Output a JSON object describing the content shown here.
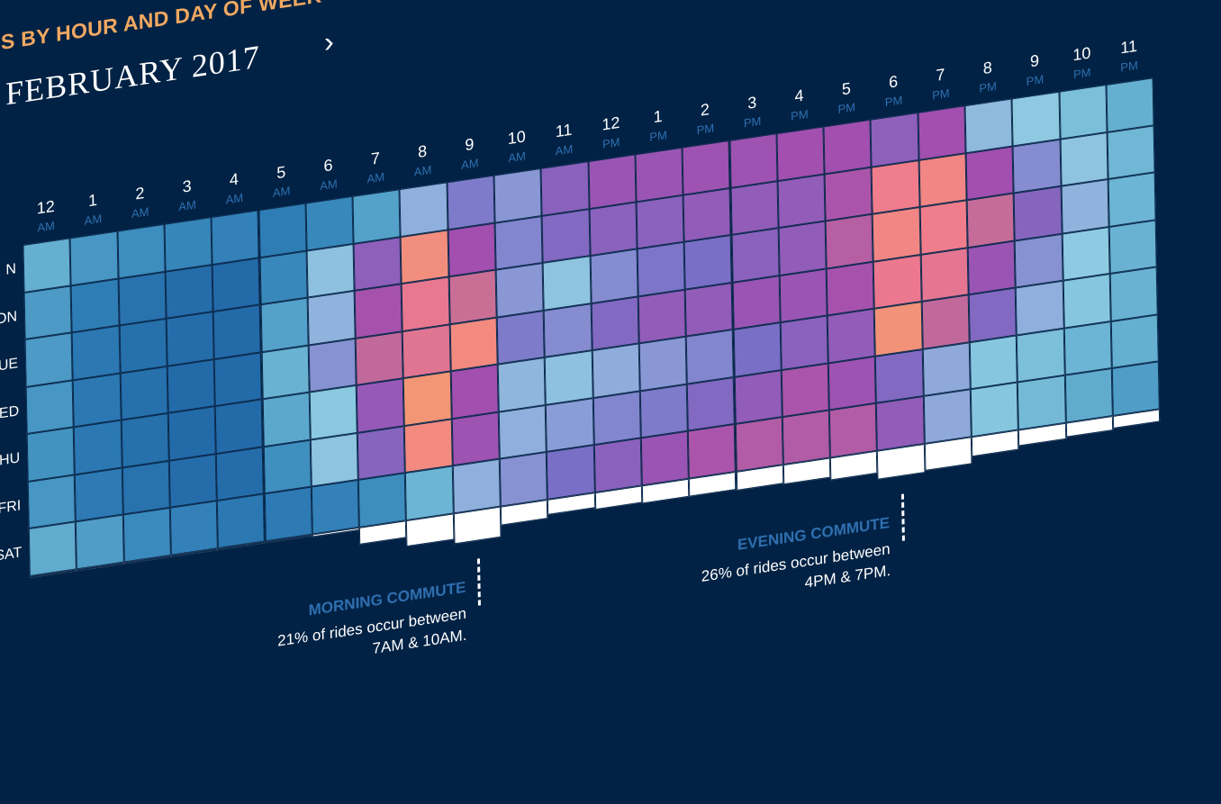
{
  "heading": "S BY HOUR AND DAY OF WEEK",
  "month_label": "FEBRUARY 2017",
  "next_icon": "chevron-right-icon",
  "chart_data": {
    "type": "heatmap",
    "rows": [
      "N",
      "ON",
      "UE",
      "WED",
      "THU",
      "FRI",
      "SAT"
    ],
    "hour_numbers": [
      "12",
      "1",
      "2",
      "3",
      "4",
      "5",
      "6",
      "7",
      "8",
      "9",
      "10",
      "11",
      "12",
      "1",
      "2",
      "3",
      "4",
      "5",
      "6",
      "7",
      "8",
      "9",
      "10",
      "11"
    ],
    "hour_periods": [
      "AM",
      "AM",
      "AM",
      "AM",
      "AM",
      "AM",
      "AM",
      "AM",
      "AM",
      "AM",
      "AM",
      "AM",
      "PM",
      "PM",
      "PM",
      "PM",
      "PM",
      "PM",
      "PM",
      "PM",
      "PM",
      "PM",
      "PM",
      "PM"
    ],
    "color_scale": [
      "#1b5c9c",
      "#2b78b3",
      "#3f8fbf",
      "#69b2d2",
      "#8ecbe2",
      "#8fa9da",
      "#7a6fc6",
      "#a24fb0",
      "#c96f96",
      "#f0798f",
      "#f4a36a"
    ],
    "values": [
      [
        0.29,
        0.22,
        0.19,
        0.16,
        0.14,
        0.12,
        0.17,
        0.25,
        0.48,
        0.58,
        0.53,
        0.64,
        0.68,
        0.68,
        0.69,
        0.69,
        0.7,
        0.7,
        0.65,
        0.7,
        0.45,
        0.41,
        0.35,
        0.29
      ],
      [
        0.23,
        0.12,
        0.08,
        0.06,
        0.05,
        0.17,
        0.43,
        0.65,
        0.95,
        0.7,
        0.56,
        0.62,
        0.64,
        0.64,
        0.66,
        0.66,
        0.66,
        0.72,
        0.91,
        0.93,
        0.7,
        0.55,
        0.42,
        0.32
      ],
      [
        0.23,
        0.1,
        0.07,
        0.06,
        0.05,
        0.25,
        0.47,
        0.71,
        0.88,
        0.8,
        0.53,
        0.42,
        0.55,
        0.59,
        0.6,
        0.64,
        0.66,
        0.75,
        0.93,
        0.91,
        0.79,
        0.63,
        0.47,
        0.31
      ],
      [
        0.22,
        0.1,
        0.07,
        0.05,
        0.05,
        0.3,
        0.54,
        0.78,
        0.86,
        0.94,
        0.58,
        0.55,
        0.62,
        0.66,
        0.66,
        0.68,
        0.68,
        0.71,
        0.89,
        0.87,
        0.68,
        0.54,
        0.4,
        0.3
      ],
      [
        0.21,
        0.1,
        0.07,
        0.05,
        0.05,
        0.27,
        0.39,
        0.67,
        0.97,
        0.7,
        0.46,
        0.43,
        0.49,
        0.53,
        0.56,
        0.6,
        0.64,
        0.66,
        0.96,
        0.78,
        0.62,
        0.48,
        0.38,
        0.3
      ],
      [
        0.22,
        0.11,
        0.08,
        0.06,
        0.06,
        0.2,
        0.42,
        0.63,
        0.94,
        0.69,
        0.48,
        0.52,
        0.56,
        0.58,
        0.62,
        0.66,
        0.72,
        0.69,
        0.62,
        0.5,
        0.38,
        0.35,
        0.31,
        0.29
      ],
      [
        0.28,
        0.24,
        0.18,
        0.14,
        0.1,
        0.11,
        0.14,
        0.19,
        0.31,
        0.48,
        0.54,
        0.6,
        0.64,
        0.68,
        0.72,
        0.74,
        0.74,
        0.74,
        0.66,
        0.5,
        0.38,
        0.33,
        0.28,
        0.24
      ]
    ],
    "totals": [
      0.07,
      0.05,
      0.04,
      0.03,
      0.02,
      0.04,
      0.1,
      0.55,
      0.82,
      0.95,
      0.6,
      0.48,
      0.55,
      0.56,
      0.58,
      0.6,
      0.62,
      0.7,
      0.9,
      0.85,
      0.62,
      0.52,
      0.46,
      0.4
    ]
  },
  "annotations": [
    {
      "title": "MORNING COMMUTE",
      "line1": "21% of rides occur between",
      "line2": "7AM & 10AM.",
      "hour": 9
    },
    {
      "title": "EVENING COMMUTE",
      "line1": "26% of rides occur between",
      "line2": "4PM & 7PM.",
      "hour": 18
    }
  ]
}
